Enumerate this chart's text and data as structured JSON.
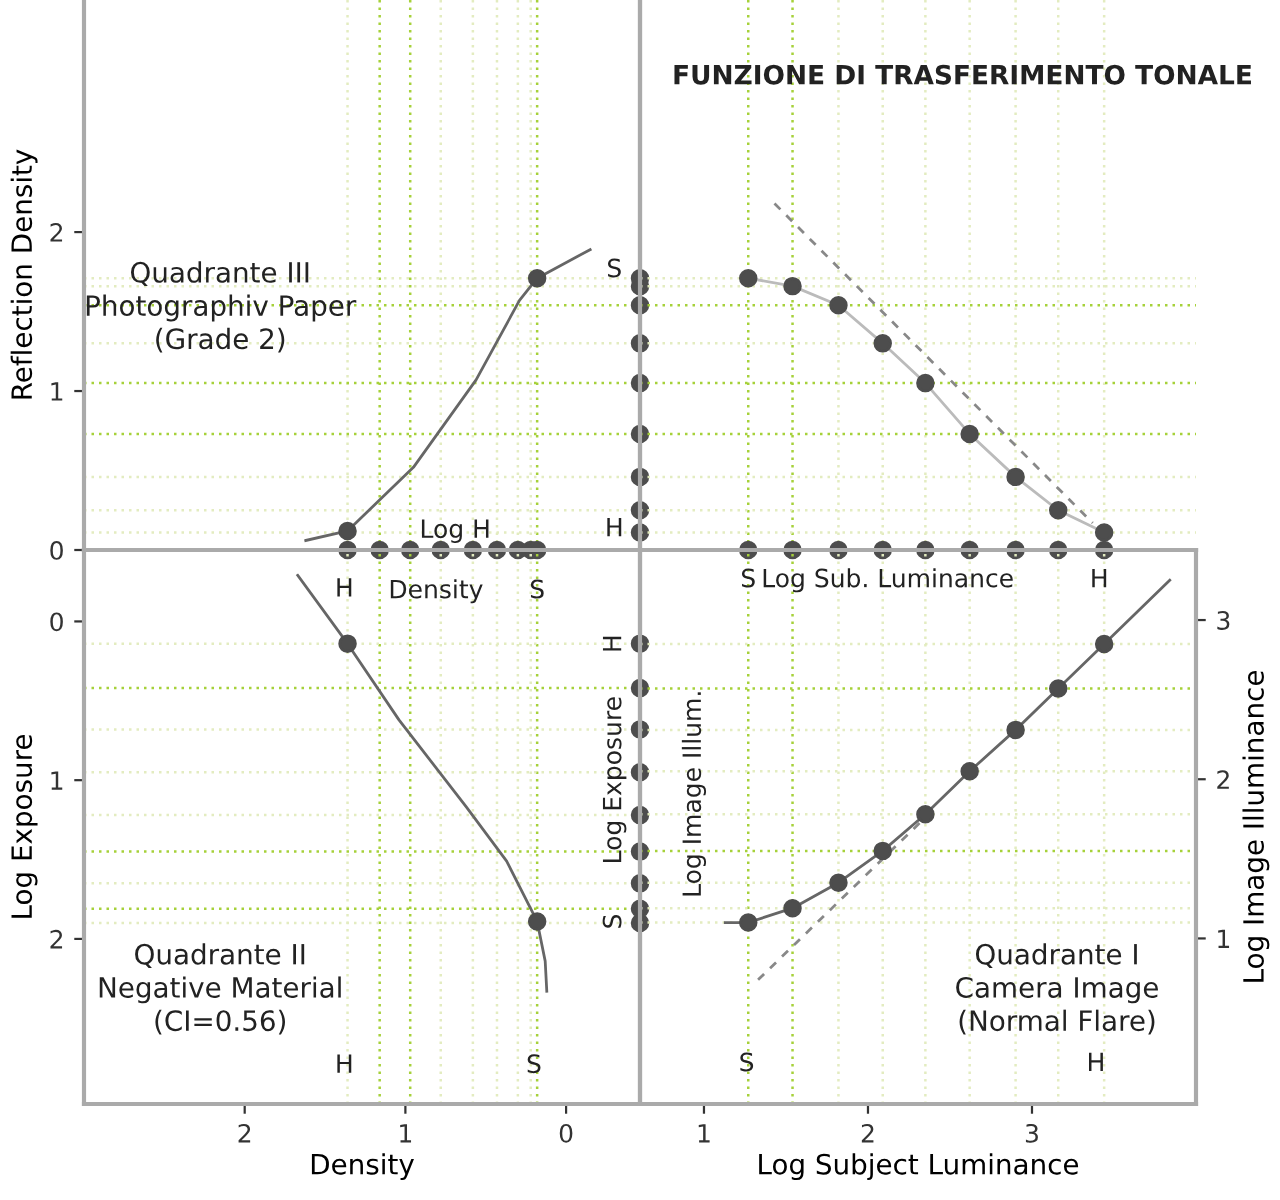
{
  "chart_data": [
    {
      "type": "line",
      "ylabel": "Reflection Density",
      "xlim": [
        3.0,
        -0.46
      ],
      "ylim": [
        0,
        3.46
      ],
      "yticks": [
        0,
        1,
        2
      ],
      "tick_labels": "y",
      "annotations": [
        "Quadrante III\nPhotographiv Paper\n(Grade 2)",
        {
          "text": "Log H",
          "x": 0.69,
          "y": 0.12
        },
        {
          "text": "S",
          "x": -0.3,
          "y": 1.76
        },
        {
          "text": "H",
          "x": -0.3,
          "y": 0.13
        }
      ],
      "ref_lines": [
        {
          "axis": "x",
          "value": 1.36,
          "color": "#e3ecc0",
          "line_style": "dotted"
        },
        {
          "axis": "x",
          "value": 1.16,
          "color": "#a6d13a",
          "line_style": "dotted"
        },
        {
          "axis": "x",
          "value": 0.97,
          "color": "#a6d13a",
          "line_style": "dotted"
        },
        {
          "axis": "x",
          "value": 0.78,
          "color": "#e3ecc0",
          "line_style": "dotted"
        },
        {
          "axis": "x",
          "value": 0.58,
          "color": "#e3ecc0",
          "line_style": "dotted"
        },
        {
          "axis": "x",
          "value": 0.43,
          "color": "#e3ecc0",
          "line_style": "dotted"
        },
        {
          "axis": "x",
          "value": 0.3,
          "color": "#e3ecc0",
          "line_style": "dotted"
        },
        {
          "axis": "x",
          "value": 0.22,
          "color": "#e3ecc0",
          "line_style": "dotted"
        },
        {
          "axis": "x",
          "value": 0.18,
          "color": "#a6d13a",
          "line_style": "dotted"
        },
        {
          "axis": "y",
          "value": 1.71,
          "color": "#e3ecc0",
          "line_style": "dotted"
        },
        {
          "axis": "y",
          "value": 1.66,
          "color": "#e3ecc0",
          "line_style": "dotted"
        },
        {
          "axis": "y",
          "value": 1.54,
          "color": "#a6d13a",
          "line_style": "dotted"
        },
        {
          "axis": "y",
          "value": 1.3,
          "color": "#e3ecc0",
          "line_style": "dotted"
        },
        {
          "axis": "y",
          "value": 1.05,
          "color": "#a6d13a",
          "line_style": "dotted"
        },
        {
          "axis": "y",
          "value": 0.73,
          "color": "#a6d13a",
          "line_style": "dotted"
        },
        {
          "axis": "y",
          "value": 0.46,
          "color": "#e3ecc0",
          "line_style": "dotted"
        },
        {
          "axis": "y",
          "value": 0.25,
          "color": "#e3ecc0",
          "line_style": "dotted"
        },
        {
          "axis": "y",
          "value": 0.11,
          "color": "#e3ecc0",
          "line_style": "dotted"
        }
      ],
      "series": [
        {
          "color": "#666666",
          "marker": "none",
          "line_style": "solid",
          "x": [
            1.62,
            1.36,
            0.95,
            0.56,
            0.29,
            0.18,
            -0.15
          ],
          "values": [
            0.06,
            0.12,
            0.52,
            1.07,
            1.57,
            1.71,
            1.89
          ]
        },
        {
          "type": "scatter",
          "color": "#4d4d4d",
          "marker": "circle",
          "x": [
            1.36,
            0.18
          ],
          "values": [
            0.12,
            1.71
          ]
        },
        {
          "type": "scatter",
          "color": "#4d4d4d",
          "marker": "circle",
          "x": [
            1.36,
            1.16,
            0.97,
            0.78,
            0.58,
            0.43,
            0.3,
            0.22,
            0.18
          ],
          "values": [
            0,
            0,
            0,
            0,
            0,
            0,
            0,
            0,
            0
          ]
        },
        {
          "type": "scatter",
          "color": "#4d4d4d",
          "marker": "circle",
          "x": [
            -0.46,
            -0.46,
            -0.46,
            -0.46,
            -0.46,
            -0.46,
            -0.46,
            -0.46,
            -0.46
          ],
          "values": [
            1.71,
            1.66,
            1.54,
            1.3,
            1.05,
            0.73,
            0.46,
            0.25,
            0.11
          ]
        }
      ]
    },
    {
      "type": "line",
      "title": "FUNZIONE DI TRASFERIMENTO TONALE",
      "xlim": [
        0.61,
        4.0
      ],
      "ylim": [
        0,
        3.46
      ],
      "tick_labels": false,
      "ref_lines": [
        {
          "axis": "x",
          "value": 1.27,
          "color": "#a6d13a",
          "line_style": "dotted"
        },
        {
          "axis": "x",
          "value": 1.54,
          "color": "#a6d13a",
          "line_style": "dotted"
        },
        {
          "axis": "x",
          "value": 1.82,
          "color": "#e3ecc0",
          "line_style": "dotted"
        },
        {
          "axis": "x",
          "value": 2.09,
          "color": "#e3ecc0",
          "line_style": "dotted"
        },
        {
          "axis": "x",
          "value": 2.35,
          "color": "#e3ecc0",
          "line_style": "dotted"
        },
        {
          "axis": "x",
          "value": 2.62,
          "color": "#e3ecc0",
          "line_style": "dotted"
        },
        {
          "axis": "x",
          "value": 2.9,
          "color": "#e3ecc0",
          "line_style": "dotted"
        },
        {
          "axis": "x",
          "value": 3.16,
          "color": "#e3ecc0",
          "line_style": "dotted"
        },
        {
          "axis": "x",
          "value": 3.44,
          "color": "#e3ecc0",
          "line_style": "dotted"
        },
        {
          "axis": "y",
          "value": 1.71,
          "color": "#e3ecc0",
          "line_style": "dotted"
        },
        {
          "axis": "y",
          "value": 1.66,
          "color": "#e3ecc0",
          "line_style": "dotted"
        },
        {
          "axis": "y",
          "value": 1.54,
          "color": "#a6d13a",
          "line_style": "dotted"
        },
        {
          "axis": "y",
          "value": 1.3,
          "color": "#e3ecc0",
          "line_style": "dotted"
        },
        {
          "axis": "y",
          "value": 1.05,
          "color": "#a6d13a",
          "line_style": "dotted"
        },
        {
          "axis": "y",
          "value": 0.73,
          "color": "#a6d13a",
          "line_style": "dotted"
        },
        {
          "axis": "y",
          "value": 0.46,
          "color": "#e3ecc0",
          "line_style": "dotted"
        },
        {
          "axis": "y",
          "value": 0.25,
          "color": "#e3ecc0",
          "line_style": "dotted"
        },
        {
          "axis": "y",
          "value": 0.11,
          "color": "#e3ecc0",
          "line_style": "dotted"
        }
      ],
      "series": [
        {
          "color": "#bbbbbb",
          "marker": "none",
          "line_style": "solid",
          "x": [
            1.27,
            1.54,
            1.82,
            2.09,
            2.35,
            2.62,
            2.9,
            3.16,
            3.44
          ],
          "values": [
            1.71,
            1.66,
            1.54,
            1.3,
            1.05,
            0.73,
            0.46,
            0.25,
            0.11
          ]
        },
        {
          "color": "#888888",
          "marker": "none",
          "line_style": "dashed",
          "x": [
            1.43,
            3.37
          ],
          "values": [
            2.18,
            0.17
          ]
        },
        {
          "type": "scatter",
          "color": "#4d4d4d",
          "marker": "circle",
          "x": [
            1.27,
            1.54,
            1.82,
            2.09,
            2.35,
            2.62,
            2.9,
            3.16,
            3.44
          ],
          "values": [
            1.71,
            1.66,
            1.54,
            1.3,
            1.05,
            0.73,
            0.46,
            0.25,
            0.11
          ]
        },
        {
          "type": "scatter",
          "color": "#4d4d4d",
          "marker": "circle",
          "x": [
            1.27,
            1.54,
            1.82,
            2.09,
            2.35,
            2.62,
            2.9,
            3.16,
            3.44
          ],
          "values": [
            0,
            0,
            0,
            0,
            0,
            0,
            0,
            0,
            0
          ]
        }
      ]
    },
    {
      "type": "line",
      "xlabel": "Density",
      "ylabel": "Log Exposure",
      "xlim": [
        3.0,
        -0.46
      ],
      "xticks": [
        2,
        1,
        0
      ],
      "ylim": [
        3.04,
        -0.45
      ],
      "yticks": [
        0,
        1,
        2
      ],
      "annotations": [
        "Quadrante II\nNegative Material\n(CI=0.56)",
        {
          "text": "H",
          "x": 1.38,
          "y": -0.2
        },
        {
          "text": "Density",
          "x": 0.81,
          "y": -0.19
        },
        {
          "text": "S",
          "x": 0.18,
          "y": -0.19
        },
        {
          "text": "H",
          "x": -0.3,
          "y": 0.14
        },
        {
          "text": "Log Exposure",
          "x": -0.3,
          "y": 1.0
        },
        {
          "text": "S",
          "x": -0.3,
          "y": 1.89
        },
        {
          "text": "H",
          "x": 1.38,
          "y": 2.8
        },
        {
          "text": "S",
          "x": 0.2,
          "y": 2.8
        }
      ],
      "ref_lines": [
        {
          "axis": "x",
          "value": 1.36,
          "color": "#e3ecc0",
          "line_style": "dotted"
        },
        {
          "axis": "x",
          "value": 1.16,
          "color": "#a6d13a",
          "line_style": "dotted"
        },
        {
          "axis": "x",
          "value": 0.97,
          "color": "#a6d13a",
          "line_style": "dotted"
        },
        {
          "axis": "x",
          "value": 0.78,
          "color": "#e3ecc0",
          "line_style": "dotted"
        },
        {
          "axis": "x",
          "value": 0.58,
          "color": "#e3ecc0",
          "line_style": "dotted"
        },
        {
          "axis": "x",
          "value": 0.43,
          "color": "#e3ecc0",
          "line_style": "dotted"
        },
        {
          "axis": "x",
          "value": 0.3,
          "color": "#e3ecc0",
          "line_style": "dotted"
        },
        {
          "axis": "x",
          "value": 0.22,
          "color": "#e3ecc0",
          "line_style": "dotted"
        },
        {
          "axis": "x",
          "value": 0.18,
          "color": "#a6d13a",
          "line_style": "dotted"
        },
        {
          "axis": "y",
          "value": 0.14,
          "color": "#e3ecc0",
          "line_style": "dotted"
        },
        {
          "axis": "y",
          "value": 0.42,
          "color": "#a6d13a",
          "line_style": "dotted"
        },
        {
          "axis": "y",
          "value": 0.68,
          "color": "#e3ecc0",
          "line_style": "dotted"
        },
        {
          "axis": "y",
          "value": 0.95,
          "color": "#e3ecc0",
          "line_style": "dotted"
        },
        {
          "axis": "y",
          "value": 1.22,
          "color": "#e3ecc0",
          "line_style": "dotted"
        },
        {
          "axis": "y",
          "value": 1.45,
          "color": "#a6d13a",
          "line_style": "dotted"
        },
        {
          "axis": "y",
          "value": 1.65,
          "color": "#e3ecc0",
          "line_style": "dotted"
        },
        {
          "axis": "y",
          "value": 1.81,
          "color": "#a6d13a",
          "line_style": "dotted"
        },
        {
          "axis": "y",
          "value": 1.9,
          "color": "#e3ecc0",
          "line_style": "dotted"
        }
      ],
      "series": [
        {
          "color": "#666666",
          "marker": "none",
          "line_style": "solid",
          "x": [
            1.67,
            1.36,
            1.04,
            0.62,
            0.37,
            0.18,
            0.13,
            0.12
          ],
          "values": [
            -0.29,
            0.14,
            0.62,
            1.17,
            1.51,
            1.89,
            2.14,
            2.33
          ]
        },
        {
          "type": "scatter",
          "color": "#4d4d4d",
          "marker": "circle",
          "x": [
            1.36,
            0.18
          ],
          "values": [
            0.14,
            1.89
          ]
        },
        {
          "type": "scatter",
          "color": "#4d4d4d",
          "marker": "circle",
          "x": [
            -0.46,
            -0.46,
            -0.46,
            -0.46,
            -0.46,
            -0.46,
            -0.46,
            -0.46,
            -0.46
          ],
          "values": [
            0.14,
            0.42,
            0.68,
            0.95,
            1.22,
            1.45,
            1.65,
            1.81,
            1.9
          ]
        }
      ]
    },
    {
      "type": "line",
      "xlabel": "Log Subject Luminance",
      "ylabel": "Log Image Illuminance",
      "xlim": [
        0.61,
        4.0
      ],
      "xticks": [
        1,
        2,
        3
      ],
      "ylim": [
        -0.04,
        3.44
      ],
      "yticks": [
        1,
        2,
        3
      ],
      "annotations": [
        "Quadrante I\nCamera Image\n(Normal Flare)",
        {
          "text": "S",
          "x": 1.27,
          "y": 3.25
        },
        {
          "text": "Log Sub. Luminance",
          "x": 2.12,
          "y": 3.25
        },
        {
          "text": "H",
          "x": 3.41,
          "y": 3.25
        },
        "Log Image Illum.",
        {
          "text": "S",
          "x": 1.26,
          "y": 0.21
        },
        {
          "text": "H",
          "x": 3.39,
          "y": 0.21
        }
      ],
      "ref_lines": [
        {
          "axis": "x",
          "value": 1.27,
          "color": "#a6d13a",
          "line_style": "dotted"
        },
        {
          "axis": "x",
          "value": 1.54,
          "color": "#a6d13a",
          "line_style": "dotted"
        },
        {
          "axis": "x",
          "value": 1.82,
          "color": "#e3ecc0",
          "line_style": "dotted"
        },
        {
          "axis": "x",
          "value": 2.09,
          "color": "#e3ecc0",
          "line_style": "dotted"
        },
        {
          "axis": "x",
          "value": 2.35,
          "color": "#e3ecc0",
          "line_style": "dotted"
        },
        {
          "axis": "x",
          "value": 2.62,
          "color": "#e3ecc0",
          "line_style": "dotted"
        },
        {
          "axis": "x",
          "value": 2.9,
          "color": "#e3ecc0",
          "line_style": "dotted"
        },
        {
          "axis": "x",
          "value": 3.16,
          "color": "#e3ecc0",
          "line_style": "dotted"
        },
        {
          "axis": "x",
          "value": 3.44,
          "color": "#e3ecc0",
          "line_style": "dotted"
        },
        {
          "axis": "y",
          "value": 1.1,
          "color": "#e3ecc0",
          "line_style": "dotted"
        },
        {
          "axis": "y",
          "value": 1.19,
          "color": "#e3ecc0",
          "line_style": "dotted"
        },
        {
          "axis": "y",
          "value": 1.35,
          "color": "#e3ecc0",
          "line_style": "dotted"
        },
        {
          "axis": "y",
          "value": 1.55,
          "color": "#a6d13a",
          "line_style": "dotted"
        },
        {
          "axis": "y",
          "value": 1.78,
          "color": "#e3ecc0",
          "line_style": "dotted"
        },
        {
          "axis": "y",
          "value": 2.05,
          "color": "#e3ecc0",
          "line_style": "dotted"
        },
        {
          "axis": "y",
          "value": 2.31,
          "color": "#e3ecc0",
          "line_style": "dotted"
        },
        {
          "axis": "y",
          "value": 2.57,
          "color": "#a6d13a",
          "line_style": "dotted"
        },
        {
          "axis": "y",
          "value": 2.85,
          "color": "#e3ecc0",
          "line_style": "dotted"
        }
      ],
      "series": [
        {
          "color": "#666666",
          "marker": "none",
          "line_style": "solid",
          "x": [
            1.13,
            1.27,
            1.54,
            1.82,
            2.09,
            2.35,
            2.62,
            2.9,
            3.16,
            3.44,
            3.84
          ],
          "values": [
            1.1,
            1.1,
            1.19,
            1.35,
            1.55,
            1.78,
            2.05,
            2.31,
            2.57,
            2.85,
            3.25
          ]
        },
        {
          "color": "#888888",
          "marker": "none",
          "line_style": "dashed",
          "x": [
            1.33,
            2.4
          ],
          "values": [
            0.74,
            1.81
          ]
        },
        {
          "type": "scatter",
          "color": "#4d4d4d",
          "marker": "circle",
          "x": [
            1.27,
            1.54,
            1.82,
            2.09,
            2.35,
            2.62,
            2.9,
            3.16,
            3.44
          ],
          "values": [
            1.1,
            1.19,
            1.35,
            1.55,
            1.78,
            2.05,
            2.31,
            2.57,
            2.85
          ]
        }
      ]
    }
  ]
}
